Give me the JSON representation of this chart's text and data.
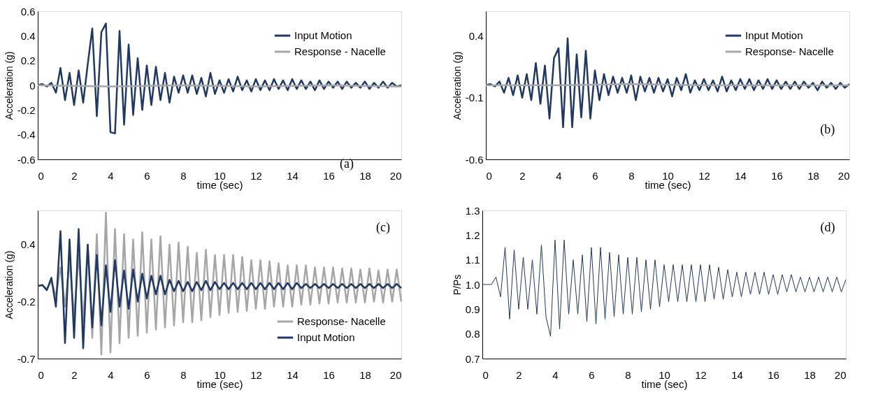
{
  "chart_data": [
    {
      "type": "line",
      "xlabel": "time (sec)",
      "ylabel": "Acceleration (g)",
      "annotations": [
        "(a)"
      ],
      "legend": "top right",
      "grid": false,
      "xlim": [
        0,
        20
      ],
      "xticks": [
        0,
        2,
        4,
        6,
        8,
        10,
        12,
        14,
        16,
        18,
        20
      ],
      "ylim": [
        -0.6,
        0.6
      ],
      "yticks": [
        -0.6,
        -0.4,
        -0.2,
        0,
        0.2,
        0.4,
        0.6
      ],
      "x": [
        0,
        0.25,
        0.5,
        0.75,
        1,
        1.25,
        1.5,
        1.75,
        2,
        2.25,
        2.5,
        2.75,
        3,
        3.25,
        3.5,
        3.75,
        4,
        4.25,
        4.5,
        4.75,
        5,
        5.25,
        5.5,
        5.75,
        6,
        6.25,
        6.5,
        6.75,
        7,
        7.25,
        7.5,
        7.75,
        8,
        8.25,
        8.5,
        8.75,
        9,
        9.25,
        9.5,
        9.75,
        10,
        10.25,
        10.5,
        10.75,
        11,
        11.25,
        11.5,
        11.75,
        12,
        12.25,
        12.5,
        12.75,
        13,
        13.25,
        13.5,
        13.75,
        14,
        14.25,
        14.5,
        14.75,
        15,
        15.25,
        15.5,
        15.75,
        16,
        16.25,
        16.5,
        16.75,
        17,
        17.25,
        17.5,
        17.75,
        18,
        18.25,
        18.5,
        18.75,
        19,
        19.25,
        19.5,
        19.75,
        20
      ],
      "series": [
        {
          "name": "Input Motion",
          "color": "#1f3864",
          "values": [
            0,
            0.01,
            -0.01,
            0.02,
            -0.06,
            0.14,
            -0.12,
            0.1,
            -0.16,
            0.12,
            -0.14,
            0.17,
            0.46,
            -0.25,
            0.43,
            0.5,
            -0.38,
            -0.39,
            0.44,
            -0.32,
            0.33,
            -0.24,
            0.22,
            -0.2,
            0.16,
            -0.16,
            0.15,
            -0.12,
            0.1,
            -0.14,
            0.07,
            -0.06,
            0.08,
            -0.06,
            0.08,
            -0.07,
            0.06,
            -0.09,
            0.1,
            -0.07,
            0.04,
            -0.06,
            0.05,
            -0.05,
            0.07,
            -0.04,
            0.04,
            -0.05,
            0.05,
            -0.04,
            0.04,
            -0.04,
            0.05,
            -0.03,
            0.04,
            -0.04,
            0.05,
            -0.03,
            0.04,
            -0.03,
            0.03,
            -0.04,
            0.04,
            -0.03,
            0.03,
            -0.02,
            0.03,
            -0.03,
            0.03,
            -0.02,
            0.02,
            -0.02,
            0.03,
            -0.03,
            0.02,
            -0.02,
            0.03,
            -0.02,
            0.02,
            -0.01,
            0
          ]
        },
        {
          "name": "Response - Nacelle",
          "color": "#a6a6a6",
          "x": [
            0,
            4,
            8,
            12,
            16,
            20
          ],
          "values": [
            0,
            -0.01,
            0,
            -0.01,
            0,
            -0.01
          ]
        }
      ]
    },
    {
      "type": "line",
      "xlabel": "time (sec)",
      "ylabel": "Acceleration (g)",
      "annotations": [
        "(b)"
      ],
      "legend": "top right",
      "grid": false,
      "xlim": [
        0,
        20
      ],
      "xticks": [
        0,
        2,
        4,
        6,
        8,
        10,
        12,
        14,
        16,
        18,
        20
      ],
      "ylim": [
        -0.6,
        0.6
      ],
      "yticks": [
        -0.6,
        -0.1,
        0.4
      ],
      "x": [
        0,
        0.25,
        0.5,
        0.75,
        1,
        1.25,
        1.5,
        1.75,
        2,
        2.25,
        2.5,
        2.75,
        3,
        3.25,
        3.5,
        3.75,
        4,
        4.25,
        4.5,
        4.75,
        5,
        5.25,
        5.5,
        5.75,
        6,
        6.25,
        6.5,
        6.75,
        7,
        7.25,
        7.5,
        7.75,
        8,
        8.25,
        8.5,
        8.75,
        9,
        9.25,
        9.5,
        9.75,
        10,
        10.25,
        10.5,
        10.75,
        11,
        11.25,
        11.5,
        11.75,
        12,
        12.25,
        12.5,
        12.75,
        13,
        13.25,
        13.5,
        13.75,
        14,
        14.25,
        14.5,
        14.75,
        15,
        15.25,
        15.5,
        15.75,
        16,
        16.25,
        16.5,
        16.75,
        17,
        17.25,
        17.5,
        17.75,
        18,
        18.25,
        18.5,
        18.75,
        19,
        19.25,
        19.5,
        19.75,
        20
      ],
      "series": [
        {
          "name": "Input Motion",
          "color": "#1f3864",
          "values": [
            0,
            0.01,
            -0.01,
            0.03,
            -0.06,
            0.06,
            -0.08,
            0.08,
            -0.1,
            0.09,
            -0.12,
            0.18,
            -0.15,
            0.16,
            -0.27,
            0.22,
            0.3,
            -0.34,
            0.38,
            -0.34,
            0.25,
            -0.26,
            0.28,
            -0.27,
            0.12,
            -0.12,
            0.09,
            -0.08,
            0.07,
            -0.06,
            0.06,
            -0.06,
            0.08,
            -0.12,
            0.07,
            -0.05,
            0.06,
            -0.06,
            0.06,
            -0.05,
            0.05,
            -0.09,
            0.06,
            -0.04,
            0.09,
            -0.06,
            0.04,
            -0.04,
            0.05,
            -0.04,
            0.04,
            -0.05,
            0.07,
            -0.05,
            0.04,
            -0.04,
            0.05,
            -0.03,
            0.05,
            -0.04,
            0.04,
            -0.03,
            0.05,
            -0.03,
            0.04,
            -0.03,
            0.03,
            -0.03,
            0.03,
            -0.03,
            0.03,
            -0.02,
            0.02,
            -0.04,
            0.03,
            -0.02,
            0.02,
            -0.03,
            0.02,
            -0.02,
            0.01
          ]
        },
        {
          "name": "Response- Nacelle",
          "color": "#a6a6a6",
          "x": [
            0,
            4,
            8,
            12,
            16,
            20
          ],
          "values": [
            0,
            0,
            0.01,
            0,
            0,
            0
          ]
        }
      ]
    },
    {
      "type": "line",
      "xlabel": "time (sec)",
      "ylabel": "Acceleration (g)",
      "annotations": [
        "(c)"
      ],
      "legend": "bottom right",
      "grid": false,
      "xlim": [
        0,
        20
      ],
      "xticks": [
        0,
        2,
        4,
        6,
        8,
        10,
        12,
        14,
        16,
        18,
        20
      ],
      "ylim": [
        -0.7,
        0.73
      ],
      "yticks": [
        -0.7,
        {
          "value": -0.15,
          "label": "-0.2"
        },
        0.4
      ],
      "x": [
        0,
        0.25,
        0.5,
        0.75,
        1,
        1.25,
        1.5,
        1.75,
        2,
        2.25,
        2.5,
        2.75,
        3,
        3.25,
        3.5,
        3.75,
        4,
        4.25,
        4.5,
        4.75,
        5,
        5.25,
        5.5,
        5.75,
        6,
        6.25,
        6.5,
        6.75,
        7,
        7.25,
        7.5,
        7.75,
        8,
        8.25,
        8.5,
        8.75,
        9,
        9.25,
        9.5,
        9.75,
        10,
        10.25,
        10.5,
        10.75,
        11,
        11.25,
        11.5,
        11.75,
        12,
        12.25,
        12.5,
        12.75,
        13,
        13.25,
        13.5,
        13.75,
        14,
        14.25,
        14.5,
        14.75,
        15,
        15.25,
        15.5,
        15.75,
        16,
        16.25,
        16.5,
        16.75,
        17,
        17.25,
        17.5,
        17.75,
        18,
        18.25,
        18.5,
        18.75,
        19,
        19.25,
        19.5,
        19.75,
        20
      ],
      "series": [
        {
          "name": "Response- Nacelle",
          "color": "#a6a6a6",
          "values": [
            0,
            0.01,
            -0.03,
            0.05,
            -0.1,
            0.18,
            -0.2,
            0.25,
            -0.3,
            0.3,
            -0.35,
            0.4,
            -0.5,
            0.5,
            -0.66,
            0.71,
            -0.64,
            0.55,
            -0.55,
            0.5,
            -0.5,
            0.45,
            -0.48,
            0.52,
            -0.45,
            0.45,
            -0.42,
            0.48,
            -0.4,
            0.4,
            -0.38,
            0.42,
            -0.35,
            0.38,
            -0.35,
            0.32,
            -0.33,
            0.35,
            -0.3,
            0.3,
            -0.28,
            0.3,
            -0.26,
            0.3,
            -0.25,
            0.28,
            -0.24,
            0.25,
            -0.22,
            0.25,
            -0.22,
            0.24,
            -0.2,
            0.22,
            -0.2,
            0.2,
            -0.2,
            0.2,
            -0.18,
            0.2,
            -0.18,
            0.18,
            -0.17,
            0.18,
            -0.17,
            0.18,
            -0.16,
            0.17,
            -0.16,
            0.17,
            -0.16,
            0.16,
            -0.16,
            0.17,
            -0.15,
            0.15,
            -0.16,
            0.16,
            -0.15,
            0.16,
            -0.15
          ]
        },
        {
          "name": "Input Motion",
          "color": "#1f3864",
          "values": [
            0,
            0.01,
            -0.04,
            0.08,
            -0.2,
            0.53,
            -0.55,
            0.45,
            -0.5,
            0.55,
            -0.6,
            0.4,
            -0.4,
            0.3,
            -0.38,
            0.2,
            -0.25,
            0.25,
            -0.2,
            0.15,
            -0.22,
            0.16,
            -0.15,
            0.12,
            -0.12,
            0.1,
            -0.08,
            0.1,
            -0.08,
            0.06,
            -0.05,
            0.05,
            -0.05,
            0.04,
            -0.05,
            0.04,
            -0.04,
            0.05,
            -0.04,
            0.04,
            -0.03,
            0.03,
            -0.03,
            0.03,
            -0.03,
            0.03,
            -0.03,
            0.03,
            -0.03,
            0.03,
            -0.03,
            0.03,
            -0.03,
            0.03,
            -0.03,
            0.03,
            -0.03,
            0.03,
            -0.02,
            0.02,
            -0.02,
            0.02,
            -0.02,
            0.02,
            -0.02,
            0.02,
            -0.02,
            0.02,
            -0.02,
            0.02,
            -0.02,
            0.02,
            -0.02,
            0.02,
            -0.02,
            0.02,
            -0.02,
            0.02,
            -0.02,
            0.02,
            -0.02
          ]
        }
      ]
    },
    {
      "type": "line",
      "xlabel": "time (sec)",
      "ylabel": "P/Ps",
      "annotations": [
        "(d)"
      ],
      "grid": false,
      "xlim": [
        0,
        20
      ],
      "xticks": [
        0,
        2,
        4,
        6,
        8,
        10,
        12,
        14,
        16,
        18,
        20
      ],
      "ylim": [
        0.7,
        1.3
      ],
      "yticks": [
        0.7,
        0.8,
        0.9,
        {
          "value": 1.0,
          "label": "1.0"
        },
        1.1,
        1.2,
        1.3
      ],
      "x": [
        0,
        0.25,
        0.5,
        0.75,
        1,
        1.25,
        1.5,
        1.75,
        2,
        2.25,
        2.5,
        2.75,
        3,
        3.25,
        3.5,
        3.75,
        4,
        4.25,
        4.5,
        4.75,
        5,
        5.25,
        5.5,
        5.75,
        6,
        6.25,
        6.5,
        6.75,
        7,
        7.25,
        7.5,
        7.75,
        8,
        8.25,
        8.5,
        8.75,
        9,
        9.25,
        9.5,
        9.75,
        10,
        10.25,
        10.5,
        10.75,
        11,
        11.25,
        11.5,
        11.75,
        12,
        12.25,
        12.5,
        12.75,
        13,
        13.25,
        13.5,
        13.75,
        14,
        14.25,
        14.5,
        14.75,
        15,
        15.25,
        15.5,
        15.75,
        16,
        16.25,
        16.5,
        16.75,
        17,
        17.25,
        17.5,
        17.75,
        18,
        18.25,
        18.5,
        18.75,
        19,
        19.25,
        19.5,
        19.75,
        20
      ],
      "series": [
        {
          "color": "#1f3864",
          "values": [
            1,
            1,
            1,
            1.03,
            0.95,
            1.15,
            0.86,
            1.14,
            0.9,
            1.11,
            0.9,
            1.1,
            0.88,
            1.16,
            0.87,
            0.79,
            1.18,
            0.82,
            1.18,
            0.88,
            1.1,
            0.88,
            1.12,
            0.85,
            1.15,
            0.84,
            1.15,
            0.86,
            1.13,
            0.87,
            1.12,
            0.88,
            1.11,
            0.88,
            1.11,
            0.89,
            1.1,
            0.9,
            1.1,
            0.91,
            1.08,
            0.93,
            1.08,
            0.93,
            1.08,
            0.93,
            1.08,
            0.93,
            1.08,
            0.93,
            1.08,
            0.94,
            1.07,
            0.94,
            1.06,
            0.95,
            1.05,
            0.95,
            1.05,
            0.96,
            1.05,
            0.96,
            1.05,
            0.96,
            1.04,
            0.96,
            1.04,
            0.97,
            1.04,
            0.97,
            1.03,
            0.97,
            1.03,
            0.97,
            1.03,
            0.97,
            1.03,
            0.97,
            1.03,
            0.97,
            1.02
          ]
        }
      ]
    }
  ]
}
